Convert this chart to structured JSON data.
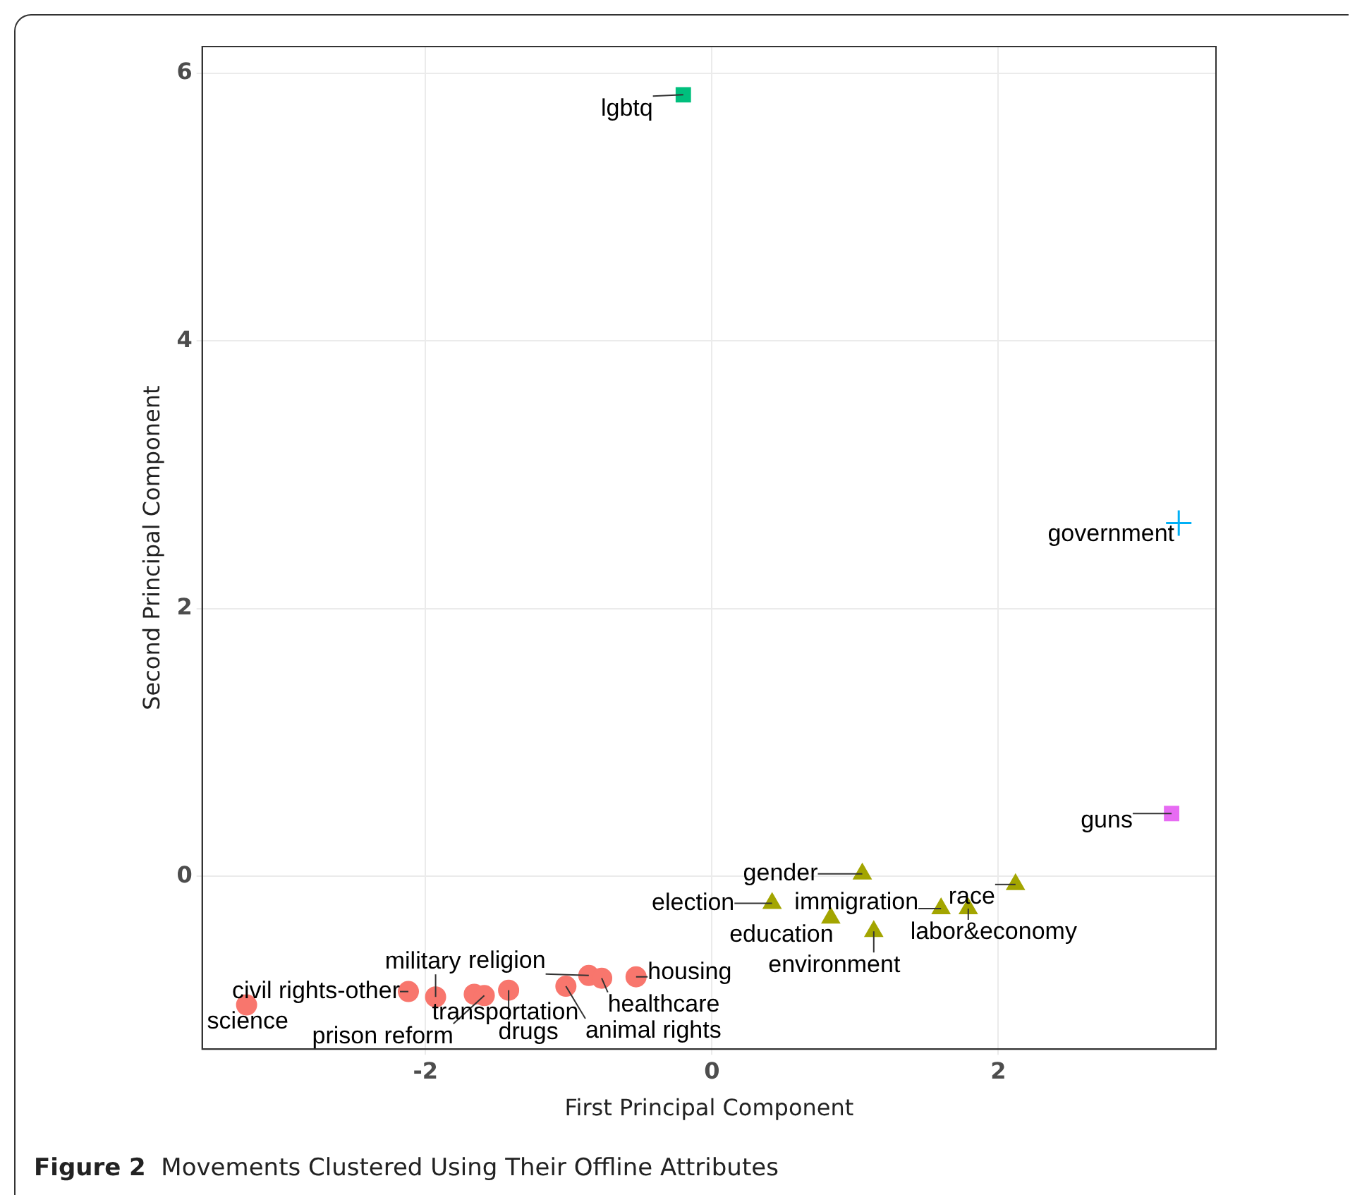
{
  "chart_data": {
    "type": "scatter",
    "xlabel": "First Principal Component",
    "ylabel": "Second Principal Component",
    "xlim": [
      -3.56,
      3.52
    ],
    "ylim": [
      -1.29,
      6.2
    ],
    "xticks": [
      -2,
      0,
      2
    ],
    "yticks": [
      0,
      2,
      4,
      6
    ],
    "grid": true,
    "legend": false,
    "annotations": [
      "Figure 2  Movements Clustered Using Their Offline Attributes"
    ],
    "series": [
      {
        "color": "#f8766d",
        "marker": "circle",
        "x": [
          -3.25,
          -2.12,
          -1.93,
          -1.66,
          -1.59,
          -1.42,
          -1.02,
          -0.86,
          -0.77,
          -0.53
        ],
        "values": [
          -0.96,
          -0.86,
          -0.9,
          -0.88,
          -0.89,
          -0.85,
          -0.82,
          -0.74,
          -0.76,
          -0.75
        ],
        "value_labels": [
          "science",
          "civil rights-other",
          "military",
          "transportation",
          "prison reform",
          "drugs",
          "animal rights",
          "religion",
          "healthcare",
          "housing"
        ]
      },
      {
        "color": "#a3a500",
        "marker": "triangle",
        "x": [
          1.05,
          0.42,
          0.83,
          1.13,
          1.6,
          1.79,
          2.12
        ],
        "values": [
          0.02,
          -0.2,
          -0.31,
          -0.41,
          -0.24,
          -0.24,
          -0.06
        ],
        "value_labels": [
          "gender",
          "election",
          "education",
          "environment",
          "immigration",
          "labor&economy",
          "race"
        ]
      },
      {
        "color": "#00bf7d",
        "marker": "square",
        "x": [
          -0.2
        ],
        "values": [
          5.84
        ],
        "value_labels": [
          "lgbtq"
        ]
      },
      {
        "color": "#00b0f6",
        "marker": "cross",
        "x": [
          3.26
        ],
        "values": [
          2.64
        ],
        "value_labels": [
          "government"
        ]
      },
      {
        "color": "#e76bf3",
        "marker": "square",
        "x": [
          3.21
        ],
        "values": [
          0.47
        ],
        "value_labels": [
          "guns"
        ]
      }
    ]
  }
}
